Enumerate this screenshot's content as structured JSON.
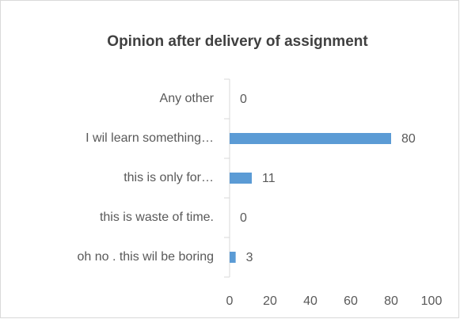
{
  "chart_data": {
    "type": "barh",
    "title": "Opinion after delivery of assignment",
    "categories": [
      "Any other",
      "I wil learn something…",
      "this is only for…",
      "this is waste of time.",
      "oh no . this wil be boring"
    ],
    "values": [
      0,
      80,
      11,
      0,
      3
    ],
    "color": "#5b9bd5",
    "xlim": [
      0,
      100
    ],
    "xticks": [
      0,
      20,
      40,
      60,
      80,
      100
    ],
    "grid": false
  }
}
